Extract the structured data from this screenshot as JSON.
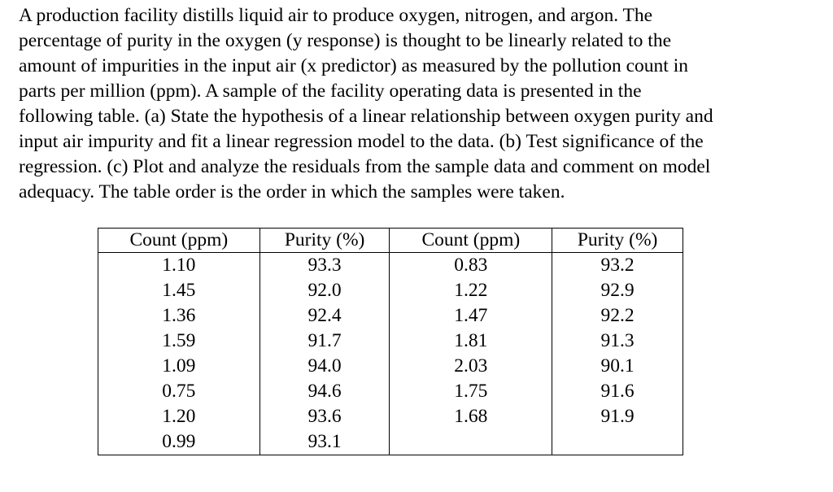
{
  "problem": {
    "lines": [
      "A production facility distills liquid air to produce oxygen, nitrogen, and argon.  The",
      "percentage of purity in the oxygen (y response) is thought to be linearly related to the",
      "amount of impurities in the input air (x predictor) as measured by the pollution count in",
      "parts per million (ppm).  A sample of the facility operating data is presented in the",
      "following table.  (a) State the hypothesis of a linear relationship between oxygen purity and",
      "input air impurity and fit a linear regression model to the data.  (b) Test significance of the",
      "regression.  (c) Plot and analyze the residuals from the sample data and comment on model",
      "adequacy.  The table order is the order in which the samples were taken."
    ]
  },
  "table": {
    "headers": [
      "Count (ppm)",
      "Purity (%)",
      "Count (ppm)",
      "Purity (%)"
    ],
    "rows": [
      [
        "1.10",
        "93.3",
        "0.83",
        "93.2"
      ],
      [
        "1.45",
        "92.0",
        "1.22",
        "92.9"
      ],
      [
        "1.36",
        "92.4",
        "1.47",
        "92.2"
      ],
      [
        "1.59",
        "91.7",
        "1.81",
        "91.3"
      ],
      [
        "1.09",
        "94.0",
        "2.03",
        "90.1"
      ],
      [
        "0.75",
        "94.6",
        "1.75",
        "91.6"
      ],
      [
        "1.20",
        "93.6",
        "1.68",
        "91.9"
      ],
      [
        "0.99",
        "93.1",
        "",
        ""
      ]
    ]
  }
}
